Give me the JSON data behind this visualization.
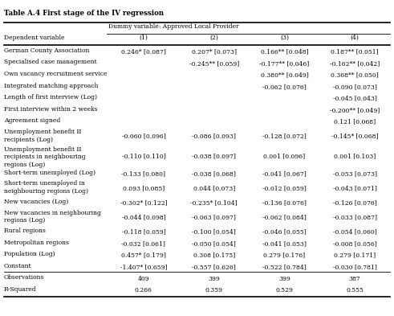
{
  "title": "Table A.4 First stage of the IV regression",
  "header_col": "Dependent variable",
  "header_span": "Dummy variable: Approved Local Provider",
  "columns": [
    "(1)",
    "(2)",
    "(3)",
    "(4)"
  ],
  "rows": [
    {
      "label": "German County Association",
      "values": [
        "0.246* [0.087]",
        "0.207* [0.073]",
        "0.166** [0.048]",
        "0.187** [0.051]"
      ]
    },
    {
      "label": "Specialised case management",
      "values": [
        "",
        "-0.245** [0.059]",
        "-0.177** [0.046]",
        "-0.162** [0.042]"
      ]
    },
    {
      "label": "Own vacancy recruitment service",
      "values": [
        "",
        "",
        "0.380** [0.049]",
        "0.368** [0.050]"
      ]
    },
    {
      "label": "Integrated matching approach",
      "values": [
        "",
        "",
        "-0.062 [0.076]",
        "-0.090 [0.073]"
      ]
    },
    {
      "label": "Length of first interview (Log)",
      "values": [
        "",
        "",
        "",
        "-0.045 [0.043]"
      ]
    },
    {
      "label": "First interview within 2 weeks",
      "values": [
        "",
        "",
        "",
        "-0.200** [0.049]"
      ]
    },
    {
      "label": "Agreement signed",
      "values": [
        "",
        "",
        "",
        "0.121 [0.068]"
      ]
    },
    {
      "label": "Unemployment benefit II\nrecipients (Log)",
      "values": [
        "-0.060 [0.096]",
        "-0.086 [0.093]",
        "-0.128 [0.072]",
        "-0.145* [0.068]"
      ]
    },
    {
      "label": "Unemployment benefit II\nrecipients in neighbouring\nregions (Log)",
      "values": [
        "-0.110 [0.110]",
        "-0.038 [0.097]",
        "0.001 [0.096]",
        "0.001 [0.103]"
      ]
    },
    {
      "label": "Short-term unemployed (Log)",
      "values": [
        "-0.133 [0.080]",
        "-0.038 [0.068]",
        "-0.041 [0.067]",
        "-0.053 [0.073]"
      ]
    },
    {
      "label": "Short-term unemployed in\nneighbouring regions (Log)",
      "values": [
        "0.093 [0.085]",
        "0.044 [0.073]",
        "-0.012 [0.059]",
        "-0.043 [0.071]"
      ]
    },
    {
      "label": "New vacancies (Log)",
      "values": [
        "-0.302* [0.122]",
        "-0.235* [0.104]",
        "-0.136 [0.076]",
        "-0.126 [0.076]"
      ]
    },
    {
      "label": "New vacancies in neighbouring\nregions (Log)",
      "values": [
        "-0.044 [0.098]",
        "-0.063 [0.097]",
        "-0.062 [0.084]",
        "-0.033 [0.087]"
      ]
    },
    {
      "label": "Rural regions",
      "values": [
        "-0.118 [0.059]",
        "-0.100 [0.054]",
        "-0.046 [0.055]",
        "-0.054 [0.060]"
      ]
    },
    {
      "label": "Metropolitan regions",
      "values": [
        "-0.032 [0.061]",
        "-0.050 [0.054]",
        "-0.041 [0.053]",
        "-0.008 [0.056]"
      ]
    },
    {
      "label": "Population (Log)",
      "values": [
        "0.457* [0.179]",
        "0.308 [0.175]",
        "0.279 [0.176]",
        "0.279 [0.171]"
      ]
    },
    {
      "label": "Constant",
      "values": [
        "-1.407* [0.659]",
        "-0.557 [0.626]",
        "-0.522 [0.784]",
        "-0.030 [0.781]"
      ]
    },
    {
      "label": "Observations",
      "values": [
        "409",
        "399",
        "399",
        "387"
      ],
      "bottom_section": true
    },
    {
      "label": "R-Squared",
      "values": [
        "0.266",
        "0.359",
        "0.529",
        "0.555"
      ],
      "bottom_section": true
    }
  ]
}
